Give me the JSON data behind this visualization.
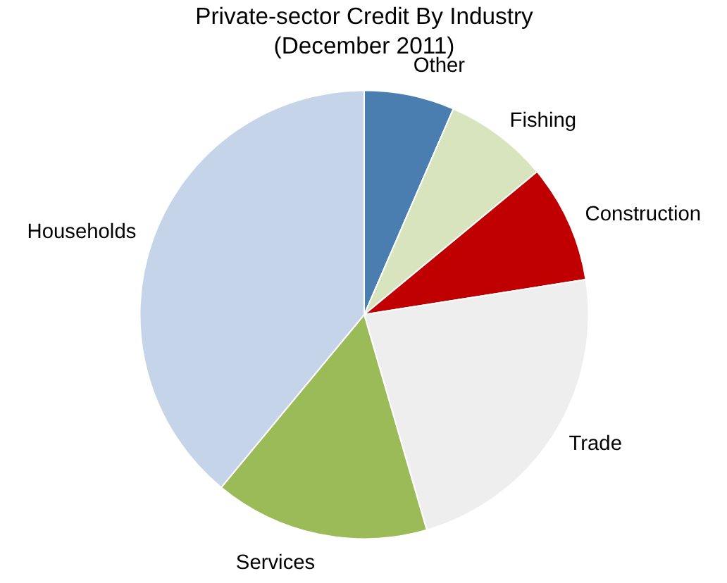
{
  "chart_data": {
    "type": "pie",
    "title": "Private-sector Credit By Industry\n(December 2011)",
    "categories": [
      "Other",
      "Fishing",
      "Construction",
      "Trade",
      "Services",
      "Households"
    ],
    "values": [
      6.5,
      7.5,
      8.5,
      23,
      15.5,
      39
    ],
    "colors": [
      "#4a7eb0",
      "#d7e4bd",
      "#c00000",
      "#eeeeee",
      "#9bbb59",
      "#c6d4ea"
    ]
  }
}
